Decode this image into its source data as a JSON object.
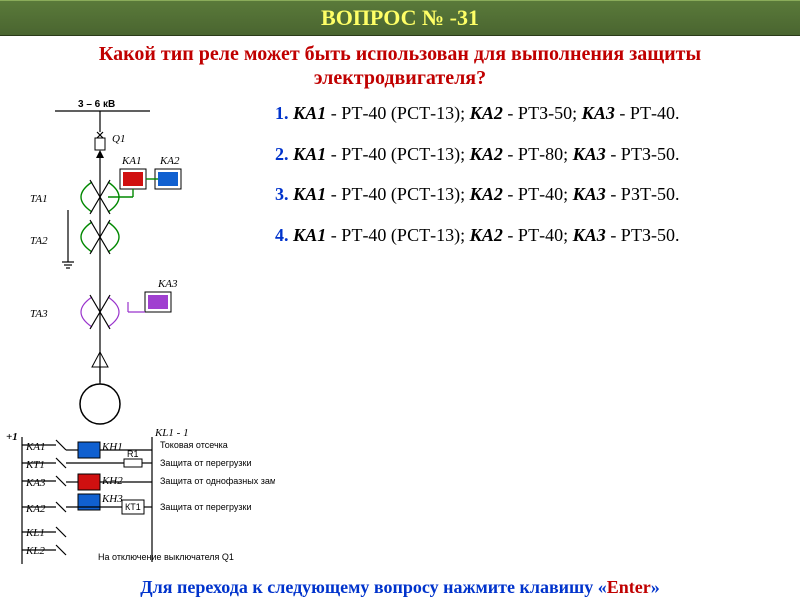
{
  "title": "ВОПРОС  № -31",
  "question": "Какой тип реле может быть использован для выполнения защиты электродвигателя?",
  "voltage": "3 – 6 кВ",
  "answers": [
    {
      "num": "1.",
      "parts": [
        "КА1",
        " - РТ-40 (РСТ-13); ",
        "КА2",
        " - РТЗ-50; ",
        "КА3",
        " - РТ-40."
      ]
    },
    {
      "num": "2.",
      "parts": [
        "КА1",
        " - РТ-40 (РСТ-13); ",
        "КА2",
        " - РТ-80; ",
        "КА3",
        " - РТЗ-50."
      ]
    },
    {
      "num": "3.",
      "parts": [
        "КА1",
        " - РТ-40 (РСТ-13); ",
        "КА2",
        " - РТ-40; ",
        "КА3",
        " - РЗТ-50."
      ]
    },
    {
      "num": "4.",
      "parts": [
        "КА1",
        " - РТ-40 (РСТ-13); ",
        "КА2",
        " - РТ-40; ",
        "КА3",
        " - РТЗ-50."
      ]
    }
  ],
  "schematic": {
    "labels": {
      "q1": "Q1",
      "ka1": "КА1",
      "ka2": "КА2",
      "ka3": "КА3",
      "ta1": "ТА1",
      "ta2": "ТА2",
      "ta3": "ТА3"
    },
    "colors": {
      "relay_ka1": "#d01010",
      "relay_ka2": "#1060d0",
      "relay_ka3": "#a040d0",
      "ct_green": "#00aa00",
      "ct_purple": "#9933cc",
      "kh_blue": "#1060d0",
      "kh_red": "#d01010"
    }
  },
  "bottom_diagram": {
    "plus1": "+1",
    "rows": [
      "КА1",
      "КТ1",
      "КА3",
      "КА2",
      "КL1",
      "КL2"
    ],
    "col_kh": [
      "КН1",
      "КН2",
      "КН3"
    ],
    "col_kt": "КТ1",
    "right_labels": [
      "Токовая отсечка",
      "Защита от перегрузки",
      "Защита от однофазных замыканий на землю",
      "Защита от перегрузки",
      "На отключение выключателя Q1"
    ],
    "r1": "R1",
    "kl1_1": "КL1  - 1"
  },
  "footer": {
    "text": "Для перехода к следующему вопросу нажмите клавишу «",
    "enter": "Enter",
    "close": "»"
  }
}
